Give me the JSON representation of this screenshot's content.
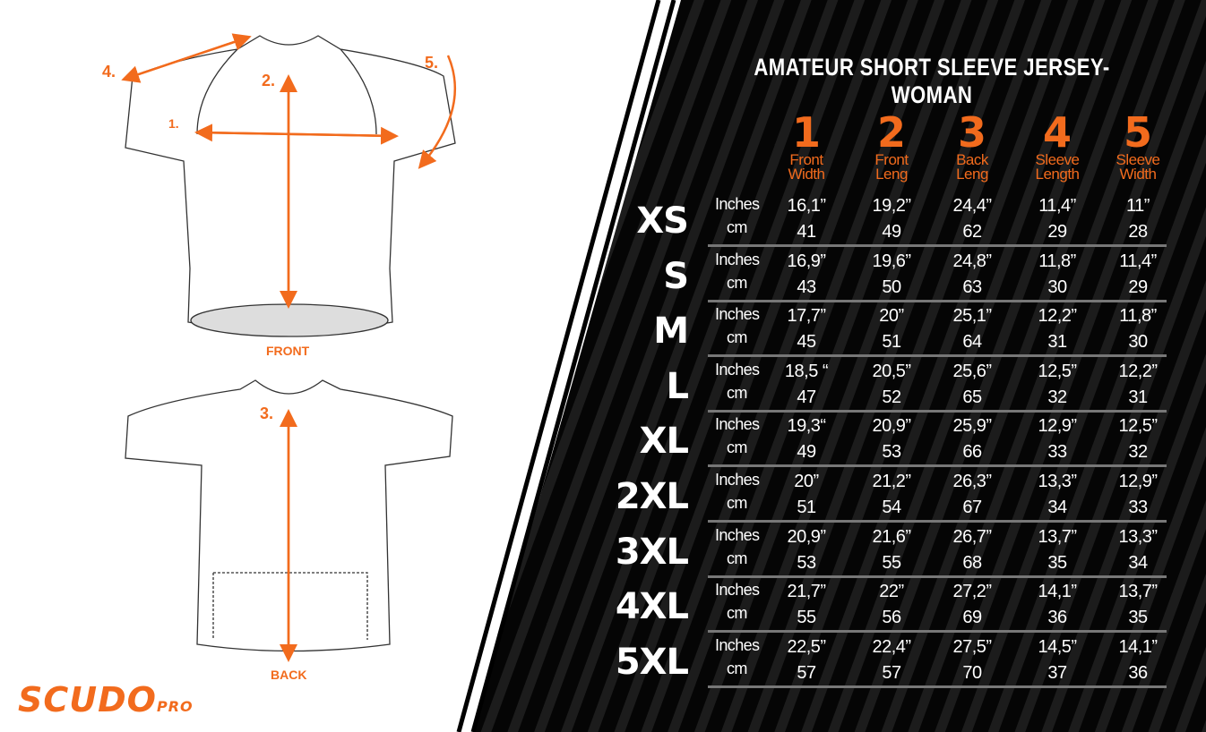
{
  "title": "AMATEUR SHORT SLEEVE JERSEY-WOMAN",
  "colors": {
    "accent": "#f26b1d",
    "panel": "#0a0a0a",
    "text": "#ffffff"
  },
  "brand": {
    "name": "SCUDO",
    "suffix": "PRO"
  },
  "diagram": {
    "front_label": "FRONT",
    "back_label": "BACK",
    "markers": [
      "1.",
      "2.",
      "3.",
      "4.",
      "5."
    ]
  },
  "columns": [
    {
      "num": "1",
      "label1": "Front",
      "label2": "Width"
    },
    {
      "num": "2",
      "label1": "Front",
      "label2": "Leng"
    },
    {
      "num": "3",
      "label1": "Back",
      "label2": "Leng"
    },
    {
      "num": "4",
      "label1": "Sleeve",
      "label2": "Length"
    },
    {
      "num": "5",
      "label1": "Sleeve",
      "label2": "Width"
    }
  ],
  "unit_labels": {
    "inches": "Inches",
    "cm": "cm"
  },
  "rows": [
    {
      "size": "XS",
      "inches": [
        "16,1”",
        "19,2”",
        "24,4”",
        "11,4”",
        "11”"
      ],
      "cm": [
        "41",
        "49",
        "62",
        "29",
        "28"
      ]
    },
    {
      "size": "S",
      "inches": [
        "16,9”",
        "19,6”",
        "24,8”",
        "11,8”",
        "11,4”"
      ],
      "cm": [
        "43",
        "50",
        "63",
        "30",
        "29"
      ]
    },
    {
      "size": "M",
      "inches": [
        "17,7”",
        "20”",
        "25,1”",
        "12,2”",
        "11,8”"
      ],
      "cm": [
        "45",
        "51",
        "64",
        "31",
        "30"
      ]
    },
    {
      "size": "L",
      "inches": [
        "18,5 “",
        "20,5”",
        "25,6”",
        "12,5”",
        "12,2”"
      ],
      "cm": [
        "47",
        "52",
        "65",
        "32",
        "31"
      ]
    },
    {
      "size": "XL",
      "inches": [
        "19,3“",
        "20,9”",
        "25,9”",
        "12,9”",
        "12,5”"
      ],
      "cm": [
        "49",
        "53",
        "66",
        "33",
        "32"
      ]
    },
    {
      "size": "2XL",
      "inches": [
        "20”",
        "21,2”",
        "26,3”",
        "13,3”",
        "12,9”"
      ],
      "cm": [
        "51",
        "54",
        "67",
        "34",
        "33"
      ]
    },
    {
      "size": "3XL",
      "inches": [
        "20,9”",
        "21,6”",
        "26,7”",
        "13,7”",
        "13,3”"
      ],
      "cm": [
        "53",
        "55",
        "68",
        "35",
        "34"
      ]
    },
    {
      "size": "4XL",
      "inches": [
        "21,7”",
        "22”",
        "27,2”",
        "14,1”",
        "13,7”"
      ],
      "cm": [
        "55",
        "56",
        "69",
        "36",
        "35"
      ]
    },
    {
      "size": "5XL",
      "inches": [
        "22,5”",
        "22,4”",
        "27,5”",
        "14,5”",
        "14,1”"
      ],
      "cm": [
        "57",
        "57",
        "70",
        "37",
        "36"
      ]
    }
  ]
}
